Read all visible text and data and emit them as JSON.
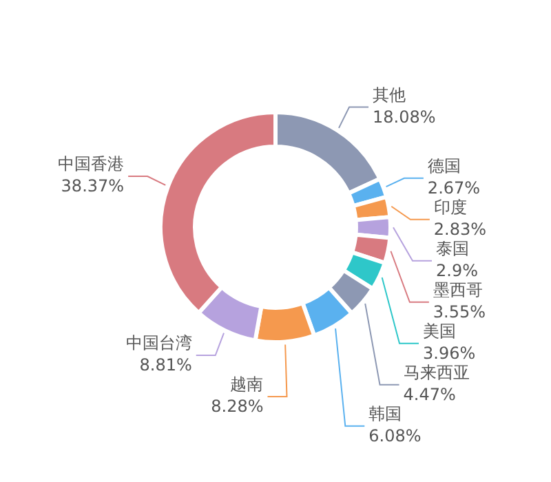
{
  "chart_data": {
    "type": "donut",
    "categories": [
      "其他",
      "德国",
      "印度",
      "泰国",
      "墨西哥",
      "美国",
      "马来西亚",
      "韩国",
      "越南",
      "中国台湾",
      "中国香港"
    ],
    "values": [
      18.08,
      2.67,
      2.83,
      2.9,
      3.55,
      3.96,
      4.47,
      6.08,
      8.28,
      8.81,
      38.37
    ],
    "colors": [
      "#8d98b3",
      "#5ab1ef",
      "#f5994e",
      "#b6a2de",
      "#d87a80",
      "#2ec7c9",
      "#8d98b3",
      "#5ab1ef",
      "#f5994e",
      "#b6a2de",
      "#d87a80"
    ],
    "value_labels": [
      "18.08%",
      "2.67%",
      "2.83%",
      "2.9%",
      "3.55%",
      "3.96%",
      "4.47%",
      "6.08%",
      "8.28%",
      "8.81%",
      "38.37%"
    ],
    "legend": false
  }
}
